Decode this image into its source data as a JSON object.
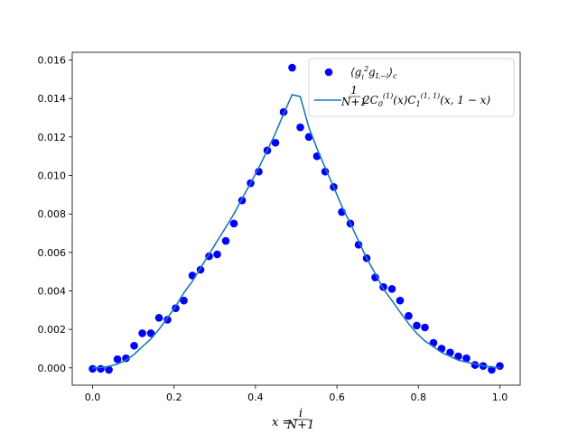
{
  "chart_data": {
    "type": "scatter",
    "xlabel": "x = i/(N+1)",
    "ylabel": "",
    "xlim": [
      -0.05,
      1.05
    ],
    "ylim": [
      -0.0009,
      0.0164
    ],
    "x_ticks": [
      "0.0",
      "0.2",
      "0.4",
      "0.6",
      "0.8",
      "1.0"
    ],
    "y_ticks": [
      "0.000",
      "0.002",
      "0.004",
      "0.006",
      "0.008",
      "0.010",
      "0.012",
      "0.014",
      "0.016"
    ],
    "grid": false,
    "legend_position": "top-right",
    "series": [
      {
        "name": "⟨g_i² g_{L−i}⟩_c",
        "kind": "scatter",
        "color": "#0000ff",
        "points": [
          [
            0.0,
            -5e-05
          ],
          [
            0.02,
            -5e-05
          ],
          [
            0.04,
            -0.0001
          ],
          [
            0.061,
            0.00045
          ],
          [
            0.082,
            0.0005
          ],
          [
            0.102,
            0.00115
          ],
          [
            0.122,
            0.0018
          ],
          [
            0.143,
            0.0018
          ],
          [
            0.163,
            0.0026
          ],
          [
            0.184,
            0.0025
          ],
          [
            0.204,
            0.0031
          ],
          [
            0.224,
            0.0035
          ],
          [
            0.245,
            0.0048
          ],
          [
            0.265,
            0.0051
          ],
          [
            0.286,
            0.0058
          ],
          [
            0.306,
            0.0059
          ],
          [
            0.327,
            0.0066
          ],
          [
            0.347,
            0.0075
          ],
          [
            0.367,
            0.0087
          ],
          [
            0.388,
            0.0096
          ],
          [
            0.408,
            0.0102
          ],
          [
            0.429,
            0.0113
          ],
          [
            0.449,
            0.0117
          ],
          [
            0.469,
            0.0133
          ],
          [
            0.49,
            0.0156
          ],
          [
            0.51,
            0.0125
          ],
          [
            0.531,
            0.012
          ],
          [
            0.551,
            0.011
          ],
          [
            0.571,
            0.0102
          ],
          [
            0.592,
            0.0094
          ],
          [
            0.612,
            0.0081
          ],
          [
            0.633,
            0.0075
          ],
          [
            0.653,
            0.0064
          ],
          [
            0.673,
            0.0057
          ],
          [
            0.694,
            0.0047
          ],
          [
            0.714,
            0.0042
          ],
          [
            0.735,
            0.0041
          ],
          [
            0.755,
            0.0035
          ],
          [
            0.776,
            0.0027
          ],
          [
            0.796,
            0.0022
          ],
          [
            0.816,
            0.0021
          ],
          [
            0.837,
            0.0013
          ],
          [
            0.857,
            0.001
          ],
          [
            0.878,
            0.0008
          ],
          [
            0.898,
            0.0006
          ],
          [
            0.918,
            0.0005
          ],
          [
            0.939,
            0.00015
          ],
          [
            0.959,
            0.0001
          ],
          [
            0.98,
            -0.0001
          ],
          [
            1.0,
            0.0001
          ]
        ]
      },
      {
        "name": "1/(N+1) 2C₀⁽¹⁾(x)C₁⁽¹,¹⁾(x,1−x)",
        "kind": "line",
        "color": "#1f77b4",
        "points": [
          [
            0.0,
            0.0
          ],
          [
            0.02,
            2e-05
          ],
          [
            0.04,
            8e-05
          ],
          [
            0.061,
            0.0002
          ],
          [
            0.082,
            0.0004
          ],
          [
            0.102,
            0.0007
          ],
          [
            0.122,
            0.0011
          ],
          [
            0.143,
            0.0015
          ],
          [
            0.163,
            0.002
          ],
          [
            0.184,
            0.0026
          ],
          [
            0.204,
            0.0032
          ],
          [
            0.224,
            0.0039
          ],
          [
            0.245,
            0.0045
          ],
          [
            0.265,
            0.0052
          ],
          [
            0.286,
            0.0059
          ],
          [
            0.306,
            0.0066
          ],
          [
            0.327,
            0.0073
          ],
          [
            0.347,
            0.008
          ],
          [
            0.367,
            0.0088
          ],
          [
            0.388,
            0.0096
          ],
          [
            0.408,
            0.0104
          ],
          [
            0.429,
            0.0113
          ],
          [
            0.449,
            0.0122
          ],
          [
            0.469,
            0.0132
          ],
          [
            0.49,
            0.0142
          ],
          [
            0.51,
            0.0141
          ],
          [
            0.531,
            0.0125
          ],
          [
            0.551,
            0.0114
          ],
          [
            0.571,
            0.0104
          ],
          [
            0.592,
            0.0094
          ],
          [
            0.612,
            0.0084
          ],
          [
            0.633,
            0.0075
          ],
          [
            0.653,
            0.0066
          ],
          [
            0.673,
            0.0057
          ],
          [
            0.694,
            0.0049
          ],
          [
            0.714,
            0.0041
          ],
          [
            0.735,
            0.0035
          ],
          [
            0.755,
            0.0029
          ],
          [
            0.776,
            0.0023
          ],
          [
            0.796,
            0.0018
          ],
          [
            0.816,
            0.0014
          ],
          [
            0.837,
            0.0011
          ],
          [
            0.857,
            0.0008
          ],
          [
            0.878,
            0.0006
          ],
          [
            0.898,
            0.0004
          ],
          [
            0.918,
            0.0003
          ],
          [
            0.939,
            0.0002
          ],
          [
            0.959,
            0.0001
          ],
          [
            0.98,
            4e-05
          ],
          [
            1.0,
            0.0
          ]
        ]
      }
    ]
  }
}
